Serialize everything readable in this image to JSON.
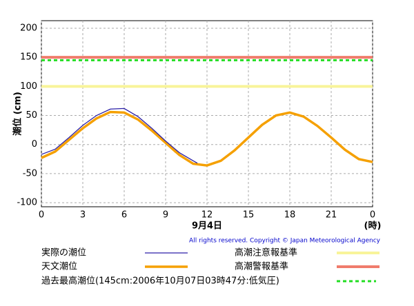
{
  "chart_data": {
    "type": "line",
    "y_label": "潮位 (cm)",
    "x_caption": "9月4日",
    "x_unit": "(時)",
    "copyright": "All rights reserved. Copyright © Japan Meteorological Agency",
    "xlim": [
      0,
      24
    ],
    "xticks": [
      0,
      3,
      6,
      9,
      12,
      15,
      18,
      21,
      {
        "value": 24,
        "label": "0"
      }
    ],
    "ylim": [
      -107,
      213
    ],
    "yticks": [
      -100,
      -50,
      0,
      50,
      100,
      150,
      200
    ],
    "grid": true,
    "series": [
      {
        "name": "実際の潮位",
        "color": "#2b1fa6",
        "width": 1.3,
        "x": [
          0,
          1,
          2,
          3,
          4,
          5,
          6,
          7,
          8,
          9,
          10,
          11,
          11.3
        ],
        "values": [
          -17,
          -8,
          12,
          33,
          50,
          61,
          62,
          48,
          28,
          6,
          -14,
          -28,
          -32
        ]
      },
      {
        "name": "天文潮位",
        "color": "#f5a000",
        "width": 3.5,
        "x": [
          0,
          1,
          2,
          3,
          4,
          5,
          6,
          7,
          8,
          9,
          10,
          11,
          12,
          13,
          14,
          15,
          16,
          17,
          18,
          19,
          20,
          21,
          22,
          23,
          24
        ],
        "values": [
          -23,
          -12,
          8,
          28,
          45,
          56,
          55,
          43,
          24,
          3,
          -18,
          -33,
          -36,
          -28,
          -10,
          12,
          34,
          50,
          55,
          48,
          32,
          12,
          -9,
          -25,
          -30
        ]
      }
    ],
    "reference_lines": [
      {
        "name": "高潮注意報基準",
        "value": 100,
        "color": "#f8f49a",
        "dash": false
      },
      {
        "name": "高潮警報基準",
        "value": 150,
        "color": "#f07c6c",
        "dash": false
      },
      {
        "name": "過去最高潮位(145cm:2006年10月07日03時47分:低気圧)",
        "value": 145,
        "color": "#22dd22",
        "dash": true
      }
    ]
  }
}
